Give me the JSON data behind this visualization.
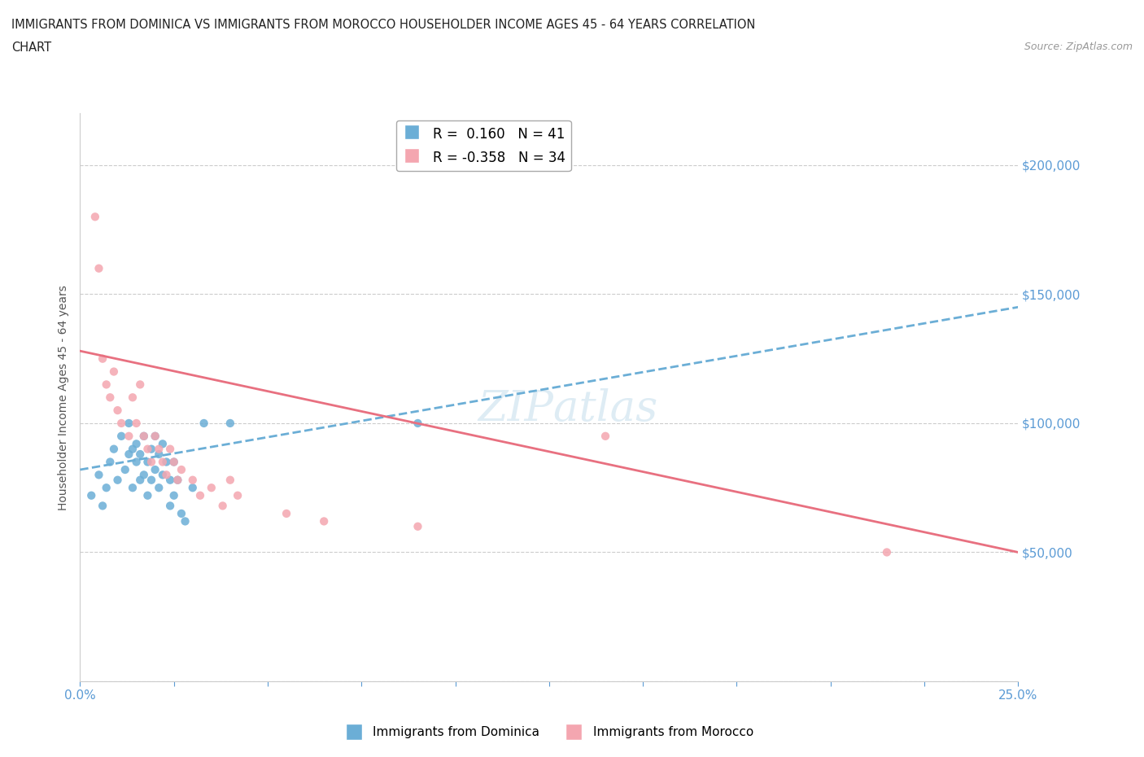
{
  "title_line1": "IMMIGRANTS FROM DOMINICA VS IMMIGRANTS FROM MOROCCO HOUSEHOLDER INCOME AGES 45 - 64 YEARS CORRELATION",
  "title_line2": "CHART",
  "source_text": "Source: ZipAtlas.com",
  "ylabel": "Householder Income Ages 45 - 64 years",
  "xlim": [
    0.0,
    0.25
  ],
  "ylim": [
    0,
    220000
  ],
  "xticks": [
    0.0,
    0.025,
    0.05,
    0.075,
    0.1,
    0.125,
    0.15,
    0.175,
    0.2,
    0.225,
    0.25
  ],
  "yticks": [
    0,
    50000,
    100000,
    150000,
    200000
  ],
  "dominica_color": "#6baed6",
  "morocco_color": "#f4a6b0",
  "morocco_line_color": "#e87080",
  "dominica_R": 0.16,
  "dominica_N": 41,
  "morocco_R": -0.358,
  "morocco_N": 34,
  "background_color": "#ffffff",
  "grid_color": "#cccccc",
  "axis_label_color": "#5b9bd5",
  "dominica_x": [
    0.003,
    0.005,
    0.006,
    0.007,
    0.008,
    0.009,
    0.01,
    0.011,
    0.012,
    0.013,
    0.013,
    0.014,
    0.014,
    0.015,
    0.015,
    0.016,
    0.016,
    0.017,
    0.017,
    0.018,
    0.018,
    0.019,
    0.019,
    0.02,
    0.02,
    0.021,
    0.021,
    0.022,
    0.022,
    0.023,
    0.024,
    0.024,
    0.025,
    0.025,
    0.026,
    0.027,
    0.028,
    0.03,
    0.033,
    0.04,
    0.09
  ],
  "dominica_y": [
    72000,
    80000,
    68000,
    75000,
    85000,
    90000,
    78000,
    95000,
    82000,
    100000,
    88000,
    75000,
    90000,
    85000,
    92000,
    78000,
    88000,
    95000,
    80000,
    85000,
    72000,
    90000,
    78000,
    95000,
    82000,
    88000,
    75000,
    80000,
    92000,
    85000,
    78000,
    68000,
    72000,
    85000,
    78000,
    65000,
    62000,
    75000,
    100000,
    100000,
    100000
  ],
  "morocco_x": [
    0.004,
    0.005,
    0.006,
    0.007,
    0.008,
    0.009,
    0.01,
    0.011,
    0.013,
    0.014,
    0.015,
    0.016,
    0.017,
    0.018,
    0.019,
    0.02,
    0.021,
    0.022,
    0.023,
    0.024,
    0.025,
    0.026,
    0.027,
    0.03,
    0.032,
    0.035,
    0.038,
    0.04,
    0.042,
    0.055,
    0.065,
    0.09,
    0.14,
    0.215
  ],
  "morocco_y": [
    180000,
    160000,
    125000,
    115000,
    110000,
    120000,
    105000,
    100000,
    95000,
    110000,
    100000,
    115000,
    95000,
    90000,
    85000,
    95000,
    90000,
    85000,
    80000,
    90000,
    85000,
    78000,
    82000,
    78000,
    72000,
    75000,
    68000,
    78000,
    72000,
    65000,
    62000,
    60000,
    95000,
    50000
  ],
  "dominica_trend_x0": 0.0,
  "dominica_trend_x1": 0.25,
  "dominica_trend_y0": 82000,
  "dominica_trend_y1": 145000,
  "morocco_trend_x0": 0.0,
  "morocco_trend_x1": 0.25,
  "morocco_trend_y0": 128000,
  "morocco_trend_y1": 50000
}
